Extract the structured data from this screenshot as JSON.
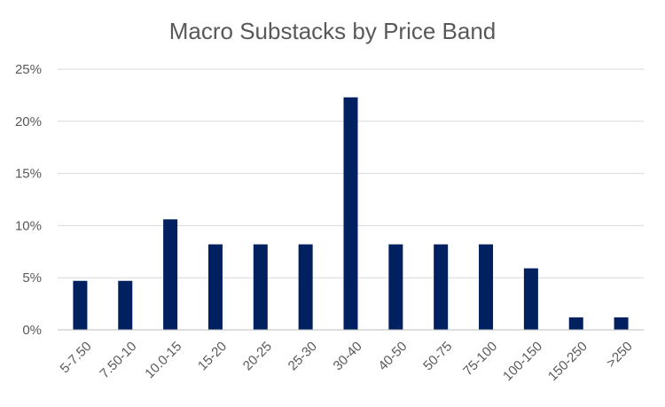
{
  "chart_data": {
    "type": "bar",
    "title": "Macro Substacks by Price Band",
    "categories": [
      "5-7.50",
      "7.50-10",
      "10.0-15",
      "15-20",
      "20-25",
      "25-30",
      "30-40",
      "40-50",
      "50-75",
      "75-100",
      "100-150",
      "150-250",
      ">250"
    ],
    "values": [
      4.7,
      4.7,
      10.6,
      8.2,
      8.2,
      8.2,
      22.3,
      8.2,
      8.2,
      8.2,
      5.9,
      1.2,
      1.2
    ],
    "y_ticks": [
      "0%",
      "5%",
      "10%",
      "15%",
      "20%",
      "25%"
    ],
    "ylim": [
      0,
      25
    ],
    "xlabel": "",
    "ylabel": "",
    "grid": true,
    "legend": "none",
    "bar_color": "#002060"
  }
}
